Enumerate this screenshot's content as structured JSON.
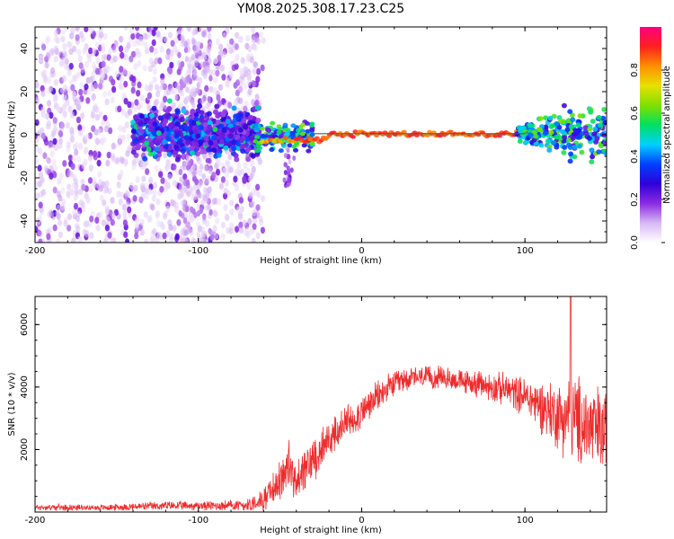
{
  "title": "YM08.2025.308.17.23.C25",
  "chart_data": [
    {
      "type": "heatmap",
      "title": "YM08.2025.308.17.23.C25",
      "xlabel": "Height of straight line (km)",
      "ylabel": "Frequency (Hz)",
      "xlim": [
        -200,
        150
      ],
      "ylim": [
        -50,
        50
      ],
      "xticks": [
        -200,
        -100,
        0,
        100
      ],
      "yticks": [
        -40,
        -20,
        0,
        20,
        40
      ],
      "colorbar": {
        "label": "Normalized spectral amplitude",
        "range": [
          0,
          1
        ],
        "ticks": [
          "0.0",
          "0.2",
          "0.4",
          "0.6",
          "0.8"
        ],
        "colors": [
          "#ffffff",
          "#d8b8f4",
          "#8a2be2",
          "#3000d8",
          "#0040ff",
          "#00d0ff",
          "#00e060",
          "#80e000",
          "#e8e000",
          "#ff9000",
          "#ff2020",
          "#ff0080"
        ]
      },
      "features": [
        {
          "x_range": [
            -200,
            -65
          ],
          "freq_range": [
            -50,
            50
          ],
          "amplitude": "scattered low (0.05-0.2)"
        },
        {
          "x_range": [
            -140,
            -65
          ],
          "freq_range": [
            -8,
            10
          ],
          "amplitude": "moderate (0.2-0.5)"
        },
        {
          "x_range": [
            -65,
            100
          ],
          "freq_center": 0,
          "amplitude": "narrow band, high (0.8-0.95)"
        },
        {
          "x_range": [
            100,
            150
          ],
          "freq_range": [
            -5,
            8
          ],
          "amplitude": "moderate (0.3-0.6)"
        }
      ]
    },
    {
      "type": "line",
      "xlabel": "Height of straight line (km)",
      "ylabel": "SNR (10 * v/v)",
      "xlim": [
        -200,
        150
      ],
      "ylim": [
        0,
        6900
      ],
      "xticks": [
        -200,
        -100,
        0,
        100
      ],
      "yticks": [
        2000,
        4000,
        6000
      ],
      "color": "#ee2c2c",
      "series": [
        {
          "name": "SNR",
          "x": [
            -200,
            -180,
            -160,
            -140,
            -120,
            -100,
            -80,
            -70,
            -60,
            -50,
            -45,
            -40,
            -30,
            -20,
            -10,
            0,
            10,
            20,
            30,
            40,
            50,
            60,
            70,
            80,
            90,
            100,
            110,
            120,
            130,
            140,
            150
          ],
          "values": [
            150,
            150,
            140,
            170,
            200,
            200,
            210,
            230,
            400,
            1000,
            1500,
            900,
            1700,
            2300,
            2800,
            3200,
            3700,
            4100,
            4300,
            4300,
            4300,
            4200,
            4100,
            4000,
            3900,
            3700,
            3400,
            3100,
            3000,
            2700,
            2500
          ],
          "spread": [
            80,
            80,
            80,
            100,
            120,
            120,
            150,
            200,
            300,
            500,
            800,
            600,
            600,
            500,
            500,
            450,
            400,
            350,
            300,
            300,
            300,
            300,
            350,
            400,
            450,
            500,
            700,
            900,
            1200,
            1200,
            1200
          ],
          "peak": {
            "x": 128,
            "y": 6900
          }
        }
      ]
    }
  ]
}
